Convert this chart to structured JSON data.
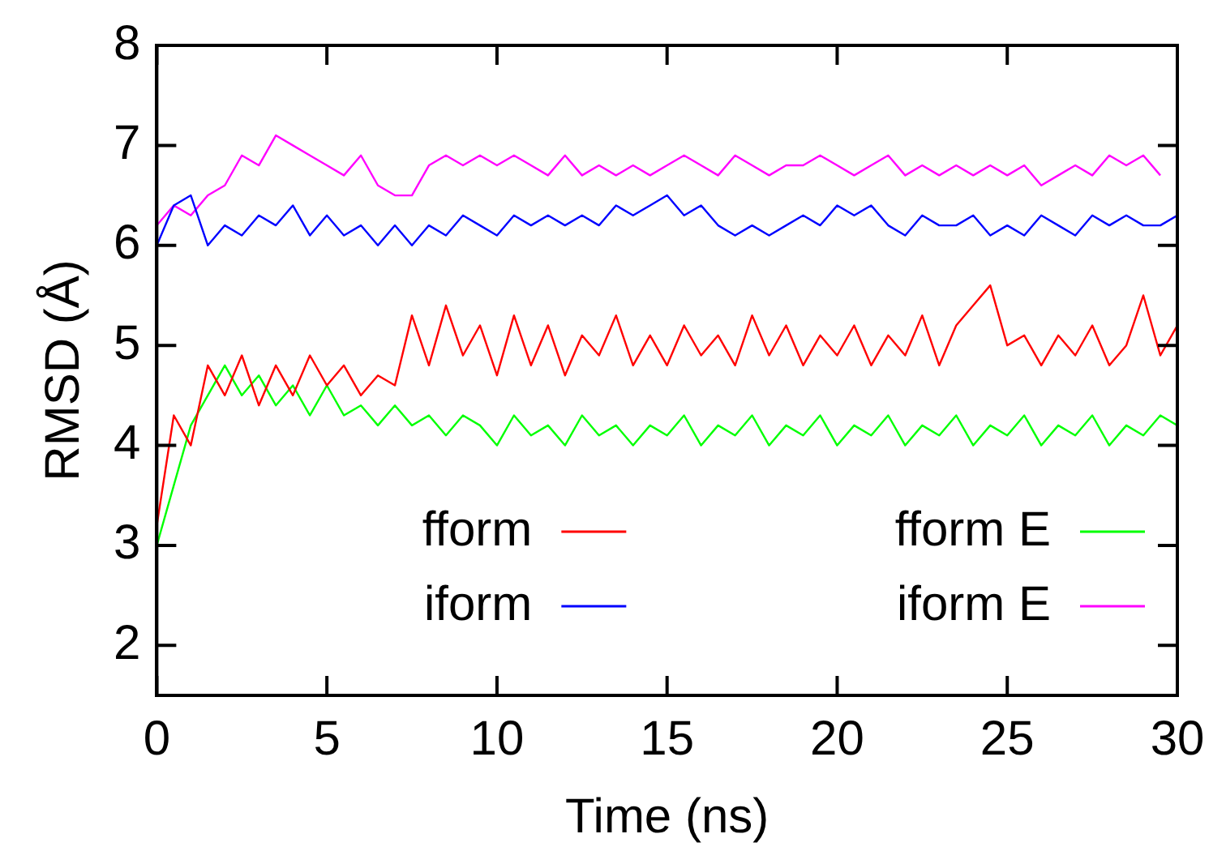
{
  "chart_data": {
    "type": "line",
    "xlabel": "Time (ns)",
    "ylabel": "RMSD (Å)",
    "x": [
      0,
      0.5,
      1,
      1.5,
      2,
      2.5,
      3,
      3.5,
      4,
      4.5,
      5,
      5.5,
      6,
      6.5,
      7,
      7.5,
      8,
      8.5,
      9,
      9.5,
      10,
      10.5,
      11,
      11.5,
      12,
      12.5,
      13,
      13.5,
      14,
      14.5,
      15,
      15.5,
      16,
      16.5,
      17,
      17.5,
      18,
      18.5,
      19,
      19.5,
      20,
      20.5,
      21,
      21.5,
      22,
      22.5,
      23,
      23.5,
      24,
      24.5,
      25,
      25.5,
      26,
      26.5,
      27,
      27.5,
      28,
      28.5,
      29,
      29.5,
      30
    ],
    "xlim": [
      0,
      30
    ],
    "xticks": [
      0,
      5,
      10,
      15,
      20,
      25,
      30
    ],
    "ylim": [
      1.5,
      8
    ],
    "yticks": [
      2,
      3,
      4,
      5,
      6,
      7,
      8
    ],
    "legend": "bottom",
    "marker": "none",
    "line_style": "solid",
    "series": [
      {
        "name": "fform",
        "color": "#ff0000",
        "values": [
          3.2,
          4.3,
          4.0,
          4.8,
          4.5,
          4.9,
          4.4,
          4.8,
          4.5,
          4.9,
          4.6,
          4.8,
          4.5,
          4.7,
          4.6,
          5.3,
          4.8,
          5.4,
          4.9,
          5.2,
          4.7,
          5.3,
          4.8,
          5.2,
          4.7,
          5.1,
          4.9,
          5.3,
          4.8,
          5.1,
          4.8,
          5.2,
          4.9,
          5.1,
          4.8,
          5.3,
          4.9,
          5.2,
          4.8,
          5.1,
          4.9,
          5.2,
          4.8,
          5.1,
          4.9,
          5.3,
          4.8,
          5.2,
          5.4,
          5.6,
          5.0,
          5.1,
          4.8,
          5.1,
          4.9,
          5.2,
          4.8,
          5.0,
          5.5,
          4.9,
          5.2
        ]
      },
      {
        "name": "iform",
        "color": "#0000ff",
        "values": [
          6.0,
          6.4,
          6.5,
          6.0,
          6.2,
          6.1,
          6.3,
          6.2,
          6.4,
          6.1,
          6.3,
          6.1,
          6.2,
          6.0,
          6.2,
          6.0,
          6.2,
          6.1,
          6.3,
          6.2,
          6.1,
          6.3,
          6.2,
          6.3,
          6.2,
          6.3,
          6.2,
          6.4,
          6.3,
          6.4,
          6.5,
          6.3,
          6.4,
          6.2,
          6.1,
          6.2,
          6.1,
          6.2,
          6.3,
          6.2,
          6.4,
          6.3,
          6.4,
          6.2,
          6.1,
          6.3,
          6.2,
          6.2,
          6.3,
          6.1,
          6.2,
          6.1,
          6.3,
          6.2,
          6.1,
          6.3,
          6.2,
          6.3,
          6.2,
          6.2,
          6.3
        ]
      },
      {
        "name": "fform E",
        "color": "#00ff00",
        "values": [
          3.0,
          3.6,
          4.2,
          4.5,
          4.8,
          4.5,
          4.7,
          4.4,
          4.6,
          4.3,
          4.6,
          4.3,
          4.4,
          4.2,
          4.4,
          4.2,
          4.3,
          4.1,
          4.3,
          4.2,
          4.0,
          4.3,
          4.1,
          4.2,
          4.0,
          4.3,
          4.1,
          4.2,
          4.0,
          4.2,
          4.1,
          4.3,
          4.0,
          4.2,
          4.1,
          4.3,
          4.0,
          4.2,
          4.1,
          4.3,
          4.0,
          4.2,
          4.1,
          4.3,
          4.0,
          4.2,
          4.1,
          4.3,
          4.0,
          4.2,
          4.1,
          4.3,
          4.0,
          4.2,
          4.1,
          4.3,
          4.0,
          4.2,
          4.1,
          4.3,
          4.2
        ]
      },
      {
        "name": "iform E",
        "color": "#ff00ff",
        "values": [
          6.2,
          6.4,
          6.3,
          6.5,
          6.6,
          6.9,
          6.8,
          7.1,
          7.0,
          6.9,
          6.8,
          6.7,
          6.9,
          6.6,
          6.5,
          6.5,
          6.8,
          6.9,
          6.8,
          6.9,
          6.8,
          6.9,
          6.8,
          6.7,
          6.9,
          6.7,
          6.8,
          6.7,
          6.8,
          6.7,
          6.8,
          6.9,
          6.8,
          6.7,
          6.9,
          6.8,
          6.7,
          6.8,
          6.8,
          6.9,
          6.8,
          6.7,
          6.8,
          6.9,
          6.7,
          6.8,
          6.7,
          6.8,
          6.7,
          6.8,
          6.7,
          6.8,
          6.6,
          6.7,
          6.8,
          6.7,
          6.9,
          6.8,
          6.9,
          6.7,
          null
        ]
      }
    ]
  }
}
